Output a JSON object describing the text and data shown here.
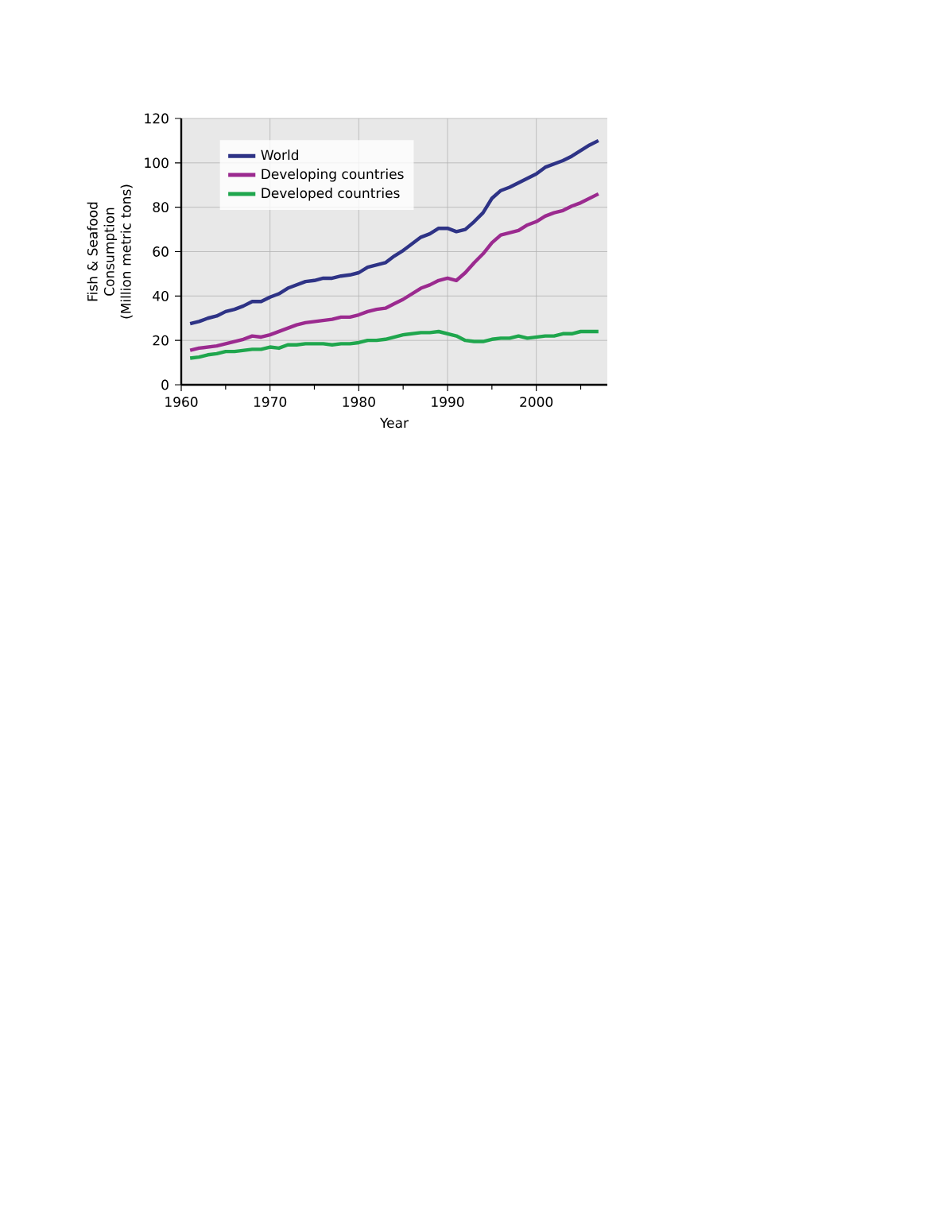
{
  "chart_data": {
    "type": "line",
    "xlabel": "Year",
    "ylabel": "Fish & Seafood Consumption (Million metric tons)",
    "x": [
      1961,
      1962,
      1963,
      1964,
      1965,
      1966,
      1967,
      1968,
      1969,
      1970,
      1971,
      1972,
      1973,
      1974,
      1975,
      1976,
      1977,
      1978,
      1979,
      1980,
      1981,
      1982,
      1983,
      1984,
      1985,
      1986,
      1987,
      1988,
      1989,
      1990,
      1991,
      1992,
      1993,
      1994,
      1995,
      1996,
      1997,
      1998,
      1999,
      2000,
      2001,
      2002,
      2003,
      2004,
      2005,
      2006,
      2007
    ],
    "series": [
      {
        "name": "World",
        "color": "#2e3386",
        "values": [
          27.5,
          28.5,
          30,
          31,
          33,
          34,
          35.5,
          37.5,
          37.5,
          39.5,
          41,
          43.5,
          45,
          46.5,
          47,
          48,
          48,
          49,
          49.5,
          50.5,
          53,
          54,
          55,
          58,
          60.5,
          63.5,
          66.5,
          68,
          70.5,
          70.5,
          69,
          70,
          73.5,
          77.5,
          84,
          87.5,
          89,
          91,
          93,
          95,
          98,
          99.5,
          101,
          103,
          105.5,
          108,
          110
        ]
      },
      {
        "name": "Developing countries",
        "color": "#9b2a8f",
        "values": [
          15.5,
          16.5,
          17,
          17.5,
          18.5,
          19.5,
          20.5,
          22,
          21.5,
          22.5,
          24,
          25.5,
          27,
          28,
          28.5,
          29,
          29.5,
          30.5,
          30.5,
          31.5,
          33,
          34,
          34.5,
          36.5,
          38.5,
          41,
          43.5,
          45,
          47,
          48,
          47,
          50.5,
          55,
          59,
          64,
          67.5,
          68.5,
          69.5,
          72,
          73.5,
          76,
          77.5,
          78.5,
          80.5,
          82,
          84,
          86
        ]
      },
      {
        "name": "Developed countries",
        "color": "#1fa64d",
        "values": [
          12,
          12.5,
          13.5,
          14,
          15,
          15,
          15.5,
          16,
          16,
          17,
          16.5,
          18,
          18,
          18.5,
          18.5,
          18.5,
          18,
          18.5,
          18.5,
          19,
          20,
          20,
          20.5,
          21.5,
          22.5,
          23,
          23.5,
          23.5,
          24,
          23,
          22,
          20,
          19.5,
          19.5,
          20.5,
          21,
          21,
          22,
          21,
          21.5,
          22,
          22,
          23,
          23,
          24,
          24,
          24
        ]
      }
    ],
    "xlim": [
      1960,
      2008
    ],
    "xticks": [
      1960,
      {
        "value": 1965,
        "label": null
      },
      1970,
      {
        "value": 1975,
        "label": null
      },
      1980,
      {
        "value": 1985,
        "label": null
      },
      1990,
      {
        "value": 1995,
        "label": null
      },
      2000,
      {
        "value": 2005,
        "label": null
      }
    ],
    "ylim": [
      0,
      120
    ],
    "yticks": [
      0,
      20,
      40,
      60,
      80,
      100,
      120
    ],
    "grid": true,
    "legend": "top left",
    "line_style": "solid",
    "marker": "none"
  }
}
